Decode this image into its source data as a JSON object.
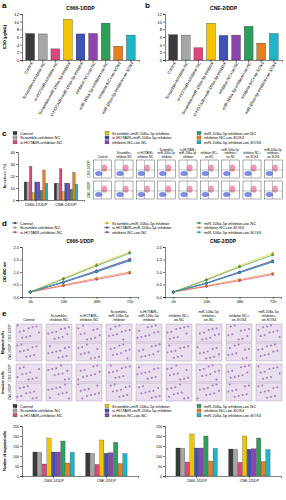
{
  "chart_data": [
    {
      "type": "bar",
      "title": "C666-1/DDP",
      "y_label": "IC50 (μg/mL)",
      "categories": [
        "Control",
        "Scramble+inhibitor-NC",
        "si-HOTAIR+inhibitor-NC",
        "Scramble+miR-106a-5p inhibitor",
        "si-HOTAIR+miR-106a-5p inhibitor",
        "inhibitor-NC+oe-NC",
        "miR-106a-5p inhibitor+oe-NC",
        "inhibitor-NC+oe-SOX4",
        "miR-106a-5p inhibitor+oe-SOX4"
      ],
      "values": [
        6.9,
        6.8,
        2.9,
        10.6,
        6.8,
        6.9,
        9.6,
        3.6,
        6.5
      ],
      "colors": [
        "#3a3a3a",
        "#a6a6a6",
        "#e0457b",
        "#f2c500",
        "#3f51b5",
        "#8e44ad",
        "#2e9e5b",
        "#e67e22",
        "#1fb5c9"
      ],
      "ylim": [
        0,
        12
      ],
      "yticks": [
        0,
        2,
        4,
        6,
        8,
        10,
        12
      ]
    },
    {
      "type": "bar",
      "title": "CNE-2/DDP",
      "y_label": "IC50 (μg/mL)",
      "categories": [
        "Control",
        "Scramble+inhibitor-NC",
        "si-HOTAIR+inhibitor-NC",
        "Scramble+miR-106a-5p inhibitor",
        "si-HOTAIR+miR-106a-5p inhibitor",
        "inhibitor-NC+oe-NC",
        "miR-106a-5p inhibitor+oe-NC",
        "inhibitor-NC+oe-SOX4",
        "miR-106a-5p inhibitor+oe-SOX4"
      ],
      "values": [
        6.6,
        6.5,
        3.2,
        9.6,
        6.4,
        6.5,
        8.8,
        4.4,
        6.9
      ],
      "colors": [
        "#3a3a3a",
        "#a6a6a6",
        "#e0457b",
        "#f2c500",
        "#3f51b5",
        "#8e44ad",
        "#2e9e5b",
        "#e67e22",
        "#1fb5c9"
      ],
      "ylim": [
        0,
        12
      ],
      "yticks": [
        0,
        2,
        4,
        6,
        8,
        10,
        12
      ]
    },
    {
      "type": "bar",
      "y_label": "Apoptosis (%)",
      "categories": [
        "C666-1/DDP",
        "CNE-2/DDP"
      ],
      "legend": "top",
      "series": [
        {
          "name": "Control",
          "color": "#3a3a3a",
          "values": [
            15,
            14
          ]
        },
        {
          "name": "Scramble+inhibitor-NC",
          "color": "#a6a6a6",
          "values": [
            15,
            14
          ]
        },
        {
          "name": "si-HOTAIR+inhibitor-NC",
          "color": "#e0457b",
          "values": [
            28,
            26
          ]
        },
        {
          "name": "Scramble+miR-106a-5p inhibitor",
          "color": "#f2c500",
          "values": [
            6,
            7
          ]
        },
        {
          "name": "si-HOTAIR+miR-106a-5p inhibitor",
          "color": "#3f51b5",
          "values": [
            15,
            14
          ]
        },
        {
          "name": "inhibitor-NC+oe-NC",
          "color": "#8e44ad",
          "values": [
            15,
            14
          ]
        },
        {
          "name": "miR-106a-5p inhibitor+oe-NC",
          "color": "#2e9e5b",
          "values": [
            8,
            9
          ]
        },
        {
          "name": "inhibitor-NC+oe-SOX4",
          "color": "#e67e22",
          "values": [
            25,
            23
          ]
        },
        {
          "name": "miR-106a-5p inhibitor+oe-SOX4",
          "color": "#1fb5c9",
          "values": [
            14,
            13
          ]
        }
      ],
      "ylim": [
        0,
        40
      ],
      "yticks": [
        0,
        10,
        20,
        30,
        40
      ]
    },
    {
      "type": "line",
      "title": "C666-1/DDP",
      "y_label": "OD 490 nm",
      "categories": [
        "0h",
        "24h",
        "48h",
        "72h"
      ],
      "marker": "circle",
      "legend": "top",
      "series": [
        {
          "name": "Control",
          "color": "#3a3a3a",
          "values": [
            0.2,
            0.6,
            1.05,
            1.5
          ]
        },
        {
          "name": "Scramble+inhibitor-NC",
          "color": "#a6a6a6",
          "values": [
            0.2,
            0.6,
            1.03,
            1.48
          ]
        },
        {
          "name": "si-HOTAIR+inhibitor-NC",
          "color": "#e0457b",
          "values": [
            0.2,
            0.45,
            0.7,
            0.95
          ]
        },
        {
          "name": "Scramble+miR-106a-5p inhibitor",
          "color": "#f2c500",
          "values": [
            0.2,
            0.75,
            1.3,
            1.8
          ]
        },
        {
          "name": "si-HOTAIR+miR-106a-5p inhibitor",
          "color": "#3f51b5",
          "values": [
            0.2,
            0.58,
            1.0,
            1.45
          ]
        },
        {
          "name": "inhibitor-NC+oe-NC",
          "color": "#8e44ad",
          "values": [
            0.2,
            0.6,
            1.04,
            1.5
          ]
        },
        {
          "name": "miR-106a-5p inhibitor+oe-NC",
          "color": "#2e9e5b",
          "values": [
            0.2,
            0.72,
            1.25,
            1.75
          ]
        },
        {
          "name": "inhibitor-NC+oe-SOX4",
          "color": "#e67e22",
          "values": [
            0.2,
            0.48,
            0.75,
            1.0
          ]
        },
        {
          "name": "miR-106a-5p inhibitor+oe-SOX4",
          "color": "#1fb5c9",
          "values": [
            0.2,
            0.6,
            1.02,
            1.46
          ]
        }
      ],
      "ylim": [
        0,
        2
      ],
      "yticks": [
        {
          "value": 0,
          "label": "0.0"
        },
        {
          "value": 0.5,
          "label": "0.5"
        },
        {
          "value": 1,
          "label": "1.0"
        },
        {
          "value": 1.5,
          "label": "1.5"
        },
        {
          "value": 2,
          "label": "2.0"
        }
      ]
    },
    {
      "type": "line",
      "title": "CNE-2/DDP",
      "y_label": "OD 490 nm",
      "categories": [
        "0h",
        "24h",
        "48h",
        "72h"
      ],
      "marker": "circle",
      "series": [
        {
          "color": "#3a3a3a",
          "values": [
            0.2,
            0.55,
            1.0,
            1.45
          ]
        },
        {
          "color": "#a6a6a6",
          "values": [
            0.2,
            0.55,
            0.98,
            1.42
          ]
        },
        {
          "color": "#e0457b",
          "values": [
            0.2,
            0.42,
            0.65,
            0.9
          ]
        },
        {
          "color": "#f2c500",
          "values": [
            0.2,
            0.7,
            1.25,
            1.75
          ]
        },
        {
          "color": "#3f51b5",
          "values": [
            0.2,
            0.55,
            0.97,
            1.4
          ]
        },
        {
          "color": "#8e44ad",
          "values": [
            0.2,
            0.56,
            1.0,
            1.44
          ]
        },
        {
          "color": "#2e9e5b",
          "values": [
            0.2,
            0.68,
            1.2,
            1.68
          ]
        },
        {
          "color": "#e67e22",
          "values": [
            0.2,
            0.45,
            0.7,
            0.95
          ]
        },
        {
          "color": "#1fb5c9",
          "values": [
            0.2,
            0.55,
            0.98,
            1.42
          ]
        }
      ],
      "ylim": [
        0,
        2
      ],
      "yticks": [
        {
          "value": 0,
          "label": "0.0"
        },
        {
          "value": 0.5,
          "label": "0.5"
        },
        {
          "value": 1,
          "label": "1.0"
        },
        {
          "value": 1.5,
          "label": "1.5"
        },
        {
          "value": 2,
          "label": "2.0"
        }
      ]
    },
    {
      "type": "bar",
      "y_label": "Number of invasive cells",
      "categories": [
        "C666-1/DDP",
        "CNE-2/DDP"
      ],
      "legend": "top",
      "series": [
        {
          "name": "Control",
          "color": "#3a3a3a",
          "values": [
            120,
            115
          ]
        },
        {
          "name": "Scramble+inhibitor-NC",
          "color": "#a6a6a6",
          "values": [
            118,
            113
          ]
        },
        {
          "name": "si-HOTAIR+inhibitor-NC",
          "color": "#e0457b",
          "values": [
            60,
            58
          ]
        },
        {
          "name": "Scramble+miR-106a-5p inhibitor",
          "color": "#f2c500",
          "values": [
            190,
            180
          ]
        },
        {
          "name": "si-HOTAIR+miR-106a-5p inhibitor",
          "color": "#3f51b5",
          "values": [
            120,
            114
          ]
        },
        {
          "name": "inhibitor-NC+oe-NC",
          "color": "#8e44ad",
          "values": [
            120,
            116
          ]
        },
        {
          "name": "miR-106a-5p inhibitor+oe-NC",
          "color": "#2e9e5b",
          "values": [
            175,
            168
          ]
        },
        {
          "name": "inhibitor-NC+oe-SOX4",
          "color": "#e67e22",
          "values": [
            65,
            62
          ]
        },
        {
          "name": "miR-106a-5p inhibitor+oe-SOX4",
          "color": "#1fb5c9",
          "values": [
            118,
            112
          ]
        }
      ],
      "ylim": [
        0,
        250
      ],
      "yticks": [
        0,
        50,
        100,
        150,
        200,
        250
      ]
    },
    {
      "type": "bar",
      "y_label": "Number of migrated cells",
      "categories": [
        "C666-1/DDP",
        "CNE-2/DDP"
      ],
      "series": [
        {
          "color": "#3a3a3a",
          "values": [
            140,
            135
          ]
        },
        {
          "color": "#a6a6a6",
          "values": [
            138,
            133
          ]
        },
        {
          "color": "#e0457b",
          "values": [
            70,
            68
          ]
        },
        {
          "color": "#f2c500",
          "values": [
            210,
            200
          ]
        },
        {
          "color": "#3f51b5",
          "values": [
            140,
            134
          ]
        },
        {
          "color": "#8e44ad",
          "values": [
            140,
            136
          ]
        },
        {
          "color": "#2e9e5b",
          "values": [
            200,
            190
          ]
        },
        {
          "color": "#e67e22",
          "values": [
            75,
            72
          ]
        },
        {
          "color": "#1fb5c9",
          "values": [
            138,
            132
          ]
        }
      ],
      "ylim": [
        0,
        250
      ],
      "yticks": [
        0,
        50,
        100,
        150,
        200,
        250
      ]
    }
  ],
  "figure": {
    "panel_labels": [
      "a",
      "b",
      "c",
      "d",
      "e"
    ],
    "flow_cytometry": {
      "row_labels": [
        "C666-1/DDP",
        "CNE-2/DDP"
      ],
      "column_labels": [
        "Control",
        "Scramble+inhibitor-NC",
        "si-HOTAIR+inhibitor-NC",
        "Scramble+miR-106a-5p inhibitor",
        "si-HOTAIR+miR-106a-5p inhibitor",
        "inhibitor-NC+oe-NC",
        "miR-106a-5p inhibitor+oe-NC",
        "inhibitor-NC+oe-SOX4",
        "miR-106a-5p inhibitor+oe-SOX4"
      ]
    },
    "micrographs": {
      "section_labels": [
        "Migrated cells",
        "Invasive cells"
      ],
      "row_labels": [
        "C666-1/DDP",
        "CNE-2/DDP"
      ],
      "column_labels": [
        "Control",
        "Scramble+inhibitor-NC",
        "si-HOTAIR+inhibitor-NC",
        "Scramble+miR-106a-5p inhibitor",
        "si-HOTAIR+miR-106a-5p inhibitor",
        "inhibitor-NC+oe-NC",
        "miR-106a-5p inhibitor+oe-NC",
        "inhibitor-NC+oe-SOX4",
        "miR-106a-5p inhibitor+oe-SOX4"
      ]
    }
  }
}
